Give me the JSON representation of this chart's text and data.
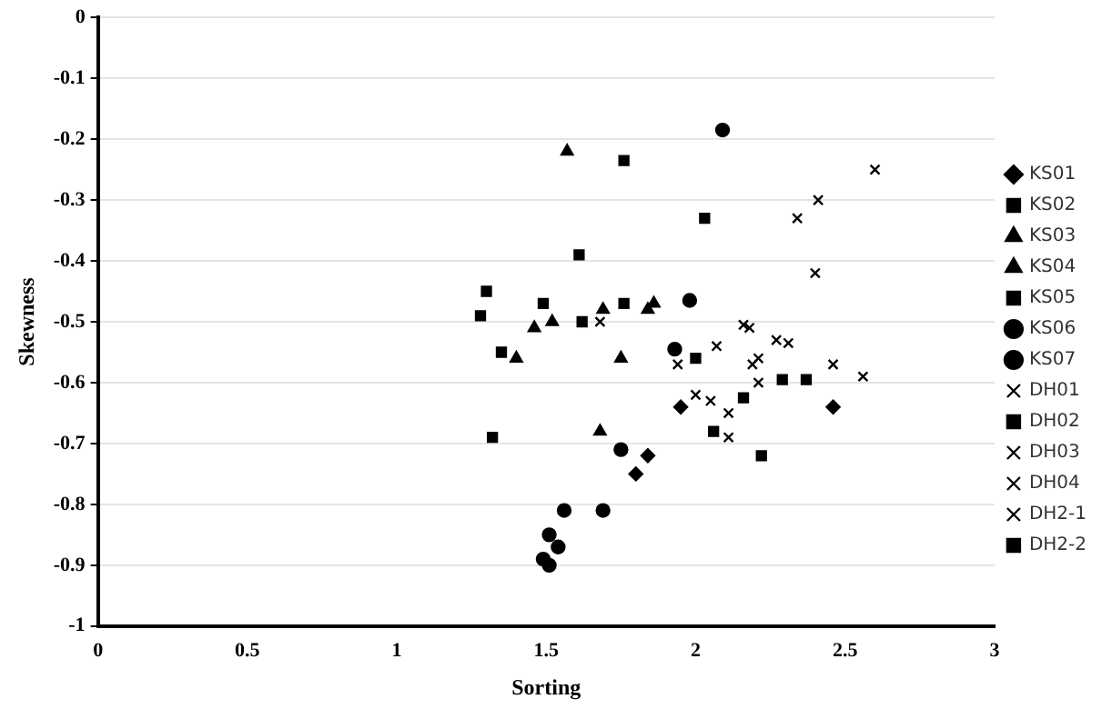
{
  "chart_data": {
    "type": "scatter",
    "xlabel": "Sorting",
    "ylabel": "Skewness",
    "xlim": [
      0,
      3
    ],
    "xticks": [
      0,
      0.5,
      1,
      1.5,
      2,
      2.5,
      3
    ],
    "ylim": [
      -1,
      0
    ],
    "yticks": [
      -1,
      -0.9,
      -0.8,
      -0.7,
      -0.6,
      -0.5,
      -0.4,
      -0.3,
      -0.2,
      -0.1,
      0
    ],
    "grid": "y",
    "legend": "right",
    "series": [
      {
        "name": "KS01",
        "color": "#000000",
        "marker": "diamond",
        "x": [
          1.95,
          2.46,
          1.84,
          1.8
        ],
        "values": [
          -0.64,
          -0.64,
          -0.72,
          -0.75
        ]
      },
      {
        "name": "KS02",
        "color": "#000000",
        "marker": "square",
        "x": [
          1.3,
          1.28,
          1.49,
          1.35,
          1.32
        ],
        "values": [
          -0.45,
          -0.49,
          -0.47,
          -0.55,
          -0.69
        ]
      },
      {
        "name": "KS03",
        "color": "#000000",
        "marker": "triangle",
        "x": [
          1.46,
          1.52,
          1.4,
          1.69,
          1.68,
          1.84
        ],
        "values": [
          -0.51,
          -0.5,
          -0.56,
          -0.48,
          -0.68,
          -0.48
        ]
      },
      {
        "name": "KS04",
        "color": "#000000",
        "marker": "triangle",
        "x": [
          1.75,
          1.57,
          1.86
        ],
        "values": [
          -0.56,
          -0.22,
          -0.47
        ]
      },
      {
        "name": "KS05",
        "color": "#000000",
        "marker": "square",
        "x": [
          1.61,
          1.62,
          1.76,
          1.76
        ],
        "values": [
          -0.39,
          -0.5,
          -0.47,
          -0.235
        ]
      },
      {
        "name": "KS06",
        "color": "#000000",
        "marker": "circle",
        "x": [
          1.56,
          1.69,
          1.51,
          1.54,
          1.49,
          1.51,
          1.75
        ],
        "values": [
          -0.81,
          -0.81,
          -0.85,
          -0.87,
          -0.89,
          -0.9,
          -0.71
        ]
      },
      {
        "name": "KS07",
        "color": "#000000",
        "marker": "circle",
        "x": [
          2.09,
          1.98,
          1.93
        ],
        "values": [
          -0.185,
          -0.465,
          -0.545
        ]
      },
      {
        "name": "DH01",
        "color": "#000000",
        "marker": "cross",
        "x": [
          2.0,
          2.05,
          2.19,
          2.16
        ],
        "values": [
          -0.62,
          -0.63,
          -0.57,
          -0.505
        ]
      },
      {
        "name": "DH02",
        "color": "#000000",
        "marker": "square",
        "x": [
          2.03,
          2.29,
          2.37,
          2.06,
          2.22
        ],
        "values": [
          -0.33,
          -0.595,
          -0.595,
          -0.68,
          -0.72
        ]
      },
      {
        "name": "DH03",
        "color": "#000000",
        "marker": "cross",
        "x": [
          2.11,
          2.11,
          2.21,
          2.46,
          2.56,
          2.41,
          2.6
        ],
        "values": [
          -0.65,
          -0.69,
          -0.56,
          -0.57,
          -0.59,
          -0.3,
          -0.25
        ]
      },
      {
        "name": "DH04",
        "color": "#000000",
        "marker": "cross",
        "x": [
          2.34,
          2.21,
          2.27,
          2.18,
          1.68
        ],
        "values": [
          -0.33,
          -0.6,
          -0.53,
          -0.51,
          -0.5
        ]
      },
      {
        "name": "DH2-1",
        "color": "#000000",
        "marker": "cross",
        "x": [
          2.07,
          2.31,
          2.4,
          1.94
        ],
        "values": [
          -0.54,
          -0.535,
          -0.42,
          -0.57
        ]
      },
      {
        "name": "DH2-2",
        "color": "#000000",
        "marker": "square",
        "x": [
          2.0,
          2.16
        ],
        "values": [
          -0.56,
          -0.625
        ]
      }
    ]
  }
}
